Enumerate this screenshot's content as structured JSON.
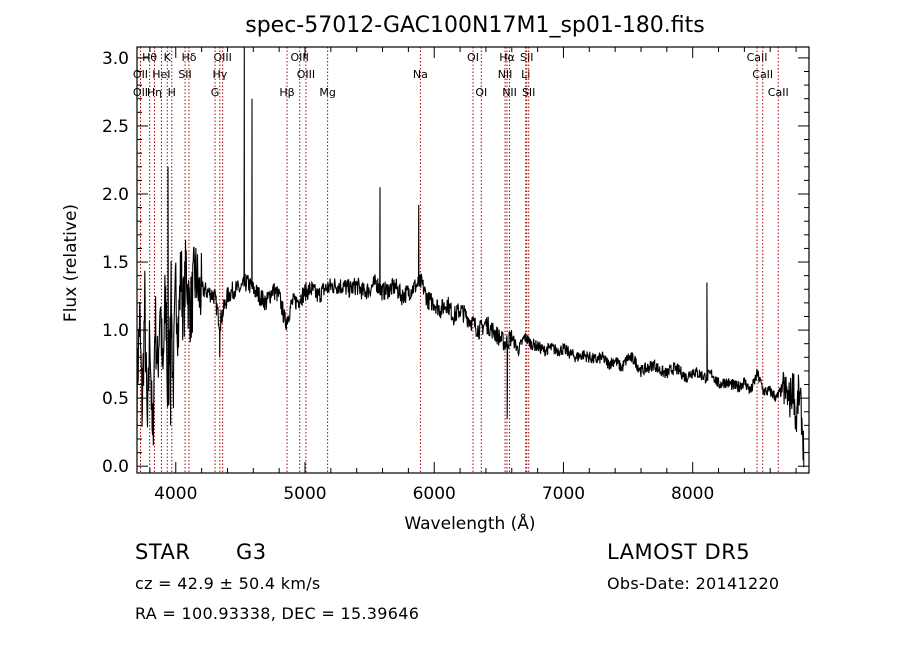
{
  "chart_data": {
    "type": "line",
    "title": "spec-57012-GAC100N17M1_sp01-180.fits",
    "xlabel": "Wavelength (Å)",
    "ylabel": "Flux (relative)",
    "xlim": [
      3700,
      8900
    ],
    "ylim": [
      -0.05,
      3.08
    ],
    "x_ticks": [
      4000,
      5000,
      6000,
      7000,
      8000
    ],
    "y_ticks": [
      0.0,
      0.5,
      1.0,
      1.5,
      2.0,
      2.5,
      3.0
    ],
    "x_tick_labels": [
      "4000",
      "5000",
      "6000",
      "7000",
      "8000"
    ],
    "y_tick_labels": [
      "0.0",
      "0.5",
      "1.0",
      "1.5",
      "2.0",
      "2.5",
      "3.0"
    ],
    "grid": false,
    "line_color": "#000000",
    "marker_color": "#aa0000",
    "spectrum": {
      "x": [
        3700,
        3720,
        3740,
        3760,
        3780,
        3800,
        3820,
        3840,
        3860,
        3880,
        3900,
        3920,
        3940,
        3960,
        3980,
        4000,
        4020,
        4040,
        4060,
        4080,
        4100,
        4120,
        4140,
        4160,
        4180,
        4200,
        4250,
        4300,
        4340,
        4400,
        4450,
        4500,
        4550,
        4600,
        4650,
        4700,
        4750,
        4800,
        4850,
        4900,
        4950,
        5000,
        5050,
        5100,
        5150,
        5200,
        5250,
        5300,
        5350,
        5400,
        5450,
        5500,
        5550,
        5600,
        5650,
        5700,
        5750,
        5800,
        5850,
        5900,
        5950,
        6000,
        6050,
        6100,
        6150,
        6200,
        6250,
        6300,
        6350,
        6400,
        6450,
        6500,
        6550,
        6600,
        6650,
        6700,
        6750,
        6800,
        6850,
        6900,
        6950,
        7000,
        7050,
        7100,
        7150,
        7200,
        7250,
        7300,
        7350,
        7400,
        7450,
        7500,
        7550,
        7600,
        7650,
        7700,
        7750,
        7800,
        7850,
        7900,
        7950,
        8000,
        8050,
        8100,
        8150,
        8200,
        8250,
        8300,
        8350,
        8400,
        8450,
        8500,
        8550,
        8600,
        8650,
        8700,
        8750,
        8780,
        8800,
        8820,
        8840,
        8860
      ],
      "y": [
        0.55,
        1.1,
        0.4,
        1.2,
        0.2,
        1.05,
        0.1,
        1.1,
        0.7,
        1.25,
        0.6,
        1.3,
        0.35,
        1.4,
        0.55,
        1.35,
        1.0,
        1.45,
        1.1,
        1.5,
        1.2,
        1.15,
        1.35,
        1.4,
        1.25,
        1.3,
        1.28,
        1.25,
        1.05,
        1.25,
        1.3,
        1.3,
        1.35,
        1.3,
        1.25,
        1.2,
        1.3,
        1.25,
        1.05,
        1.2,
        1.22,
        1.28,
        1.3,
        1.25,
        1.3,
        1.32,
        1.33,
        1.32,
        1.3,
        1.33,
        1.28,
        1.3,
        1.35,
        1.28,
        1.3,
        1.32,
        1.25,
        1.28,
        1.32,
        1.35,
        1.22,
        1.2,
        1.15,
        1.2,
        1.1,
        1.15,
        1.1,
        1.05,
        1.0,
        1.05,
        1.0,
        0.95,
        0.9,
        0.95,
        0.85,
        0.95,
        0.9,
        0.88,
        0.85,
        0.87,
        0.85,
        0.86,
        0.83,
        0.8,
        0.82,
        0.8,
        0.78,
        0.8,
        0.75,
        0.78,
        0.72,
        0.8,
        0.78,
        0.7,
        0.72,
        0.75,
        0.7,
        0.68,
        0.72,
        0.7,
        0.65,
        0.7,
        0.68,
        0.65,
        0.68,
        0.6,
        0.62,
        0.6,
        0.58,
        0.62,
        0.55,
        0.68,
        0.55,
        0.55,
        0.5,
        0.58,
        0.48,
        0.6,
        0.3,
        0.55,
        0.4,
        0.1
      ],
      "emission_spikes": [
        {
          "x": 3920,
          "y": 1.05
        },
        {
          "x": 3940,
          "y": 2.2
        },
        {
          "x": 4530,
          "y": 3.1
        },
        {
          "x": 4590,
          "y": 2.7
        },
        {
          "x": 5580,
          "y": 2.05
        },
        {
          "x": 5880,
          "y": 1.92
        },
        {
          "x": 8110,
          "y": 1.35
        }
      ],
      "absorption_dips": [
        {
          "x": 3960,
          "y": 0.3
        },
        {
          "x": 4340,
          "y": 0.8
        },
        {
          "x": 6565,
          "y": 0.35
        }
      ]
    },
    "line_markers": [
      {
        "label": "Hθ",
        "x": 3798,
        "row": 0
      },
      {
        "label": "OII",
        "x": 3727,
        "row": 1
      },
      {
        "label": "OII",
        "x": 3727,
        "row": 2
      },
      {
        "label": "Hη",
        "x": 3835,
        "row": 2
      },
      {
        "label": "K",
        "x": 3934,
        "row": 0
      },
      {
        "label": "HeI",
        "x": 3889,
        "row": 1
      },
      {
        "label": "H",
        "x": 3969,
        "row": 2
      },
      {
        "label": "Hδ",
        "x": 4102,
        "row": 0
      },
      {
        "label": "SII",
        "x": 4072,
        "row": 1
      },
      {
        "label": "OIII",
        "x": 4363,
        "row": 0
      },
      {
        "label": "Hγ",
        "x": 4341,
        "row": 1
      },
      {
        "label": "G",
        "x": 4304,
        "row": 2
      },
      {
        "label": "OIII",
        "x": 4959,
        "row": 0
      },
      {
        "label": "OIII",
        "x": 5007,
        "row": 1
      },
      {
        "label": "Hβ",
        "x": 4861,
        "row": 2
      },
      {
        "label": "Mg",
        "x": 5175,
        "row": 2
      },
      {
        "label": "Na",
        "x": 5893,
        "row": 1
      },
      {
        "label": "OI",
        "x": 6300,
        "row": 0
      },
      {
        "label": "OI",
        "x": 6364,
        "row": 2
      },
      {
        "label": "Hα",
        "x": 6563,
        "row": 0
      },
      {
        "label": "NII",
        "x": 6548,
        "row": 1
      },
      {
        "label": "NII",
        "x": 6583,
        "row": 2
      },
      {
        "label": "SII",
        "x": 6716,
        "row": 0
      },
      {
        "label": "Li",
        "x": 6708,
        "row": 1
      },
      {
        "label": "SII",
        "x": 6731,
        "row": 2
      },
      {
        "label": "CaII",
        "x": 8498,
        "row": 0
      },
      {
        "label": "CaII",
        "x": 8542,
        "row": 1
      },
      {
        "label": "CaII",
        "x": 8662,
        "row": 2
      }
    ]
  },
  "annotations": {
    "class_label": "STAR",
    "subclass": "G3",
    "survey": "LAMOST DR5",
    "redshift_line": "cz = 42.9 ± 50.4 km/s",
    "obs_date": "Obs-Date: 20141220",
    "coords": "RA = 100.93338, DEC =  15.39646"
  }
}
